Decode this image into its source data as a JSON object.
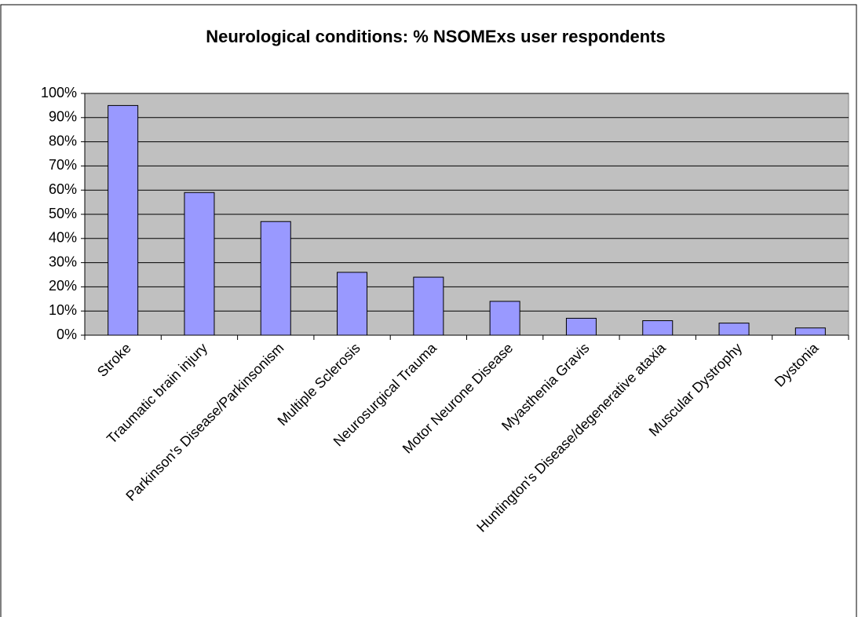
{
  "chart_data": {
    "type": "bar",
    "title": "Neurological conditions: % NSOMExs user respondents",
    "categories": [
      "Stroke",
      "Traumatic brain injury",
      "Parkinson's Disease/Parkinsonism",
      "Multiple Sclerosis",
      "Neurosurgical Trauma",
      "Motor Neurone Disease",
      "Myasthenia Gravis",
      "Huntington's Disease/degenerative ataxia",
      "Muscular Dystrophy",
      "Dystonia"
    ],
    "values": [
      95,
      59,
      47,
      26,
      24,
      14,
      7,
      6,
      5,
      3
    ],
    "color": "#9999ff",
    "ylim": [
      0,
      100
    ],
    "yticks": [
      {
        "value": 0,
        "label": "0%"
      },
      {
        "value": 10,
        "label": "10%"
      },
      {
        "value": 20,
        "label": "20%"
      },
      {
        "value": 30,
        "label": "30%"
      },
      {
        "value": 40,
        "label": "40%"
      },
      {
        "value": 50,
        "label": "50%"
      },
      {
        "value": 60,
        "label": "60%"
      },
      {
        "value": 70,
        "label": "70%"
      },
      {
        "value": 80,
        "label": "80%"
      },
      {
        "value": 90,
        "label": "90%"
      },
      {
        "value": 100,
        "label": "100%"
      }
    ],
    "grid": true
  }
}
